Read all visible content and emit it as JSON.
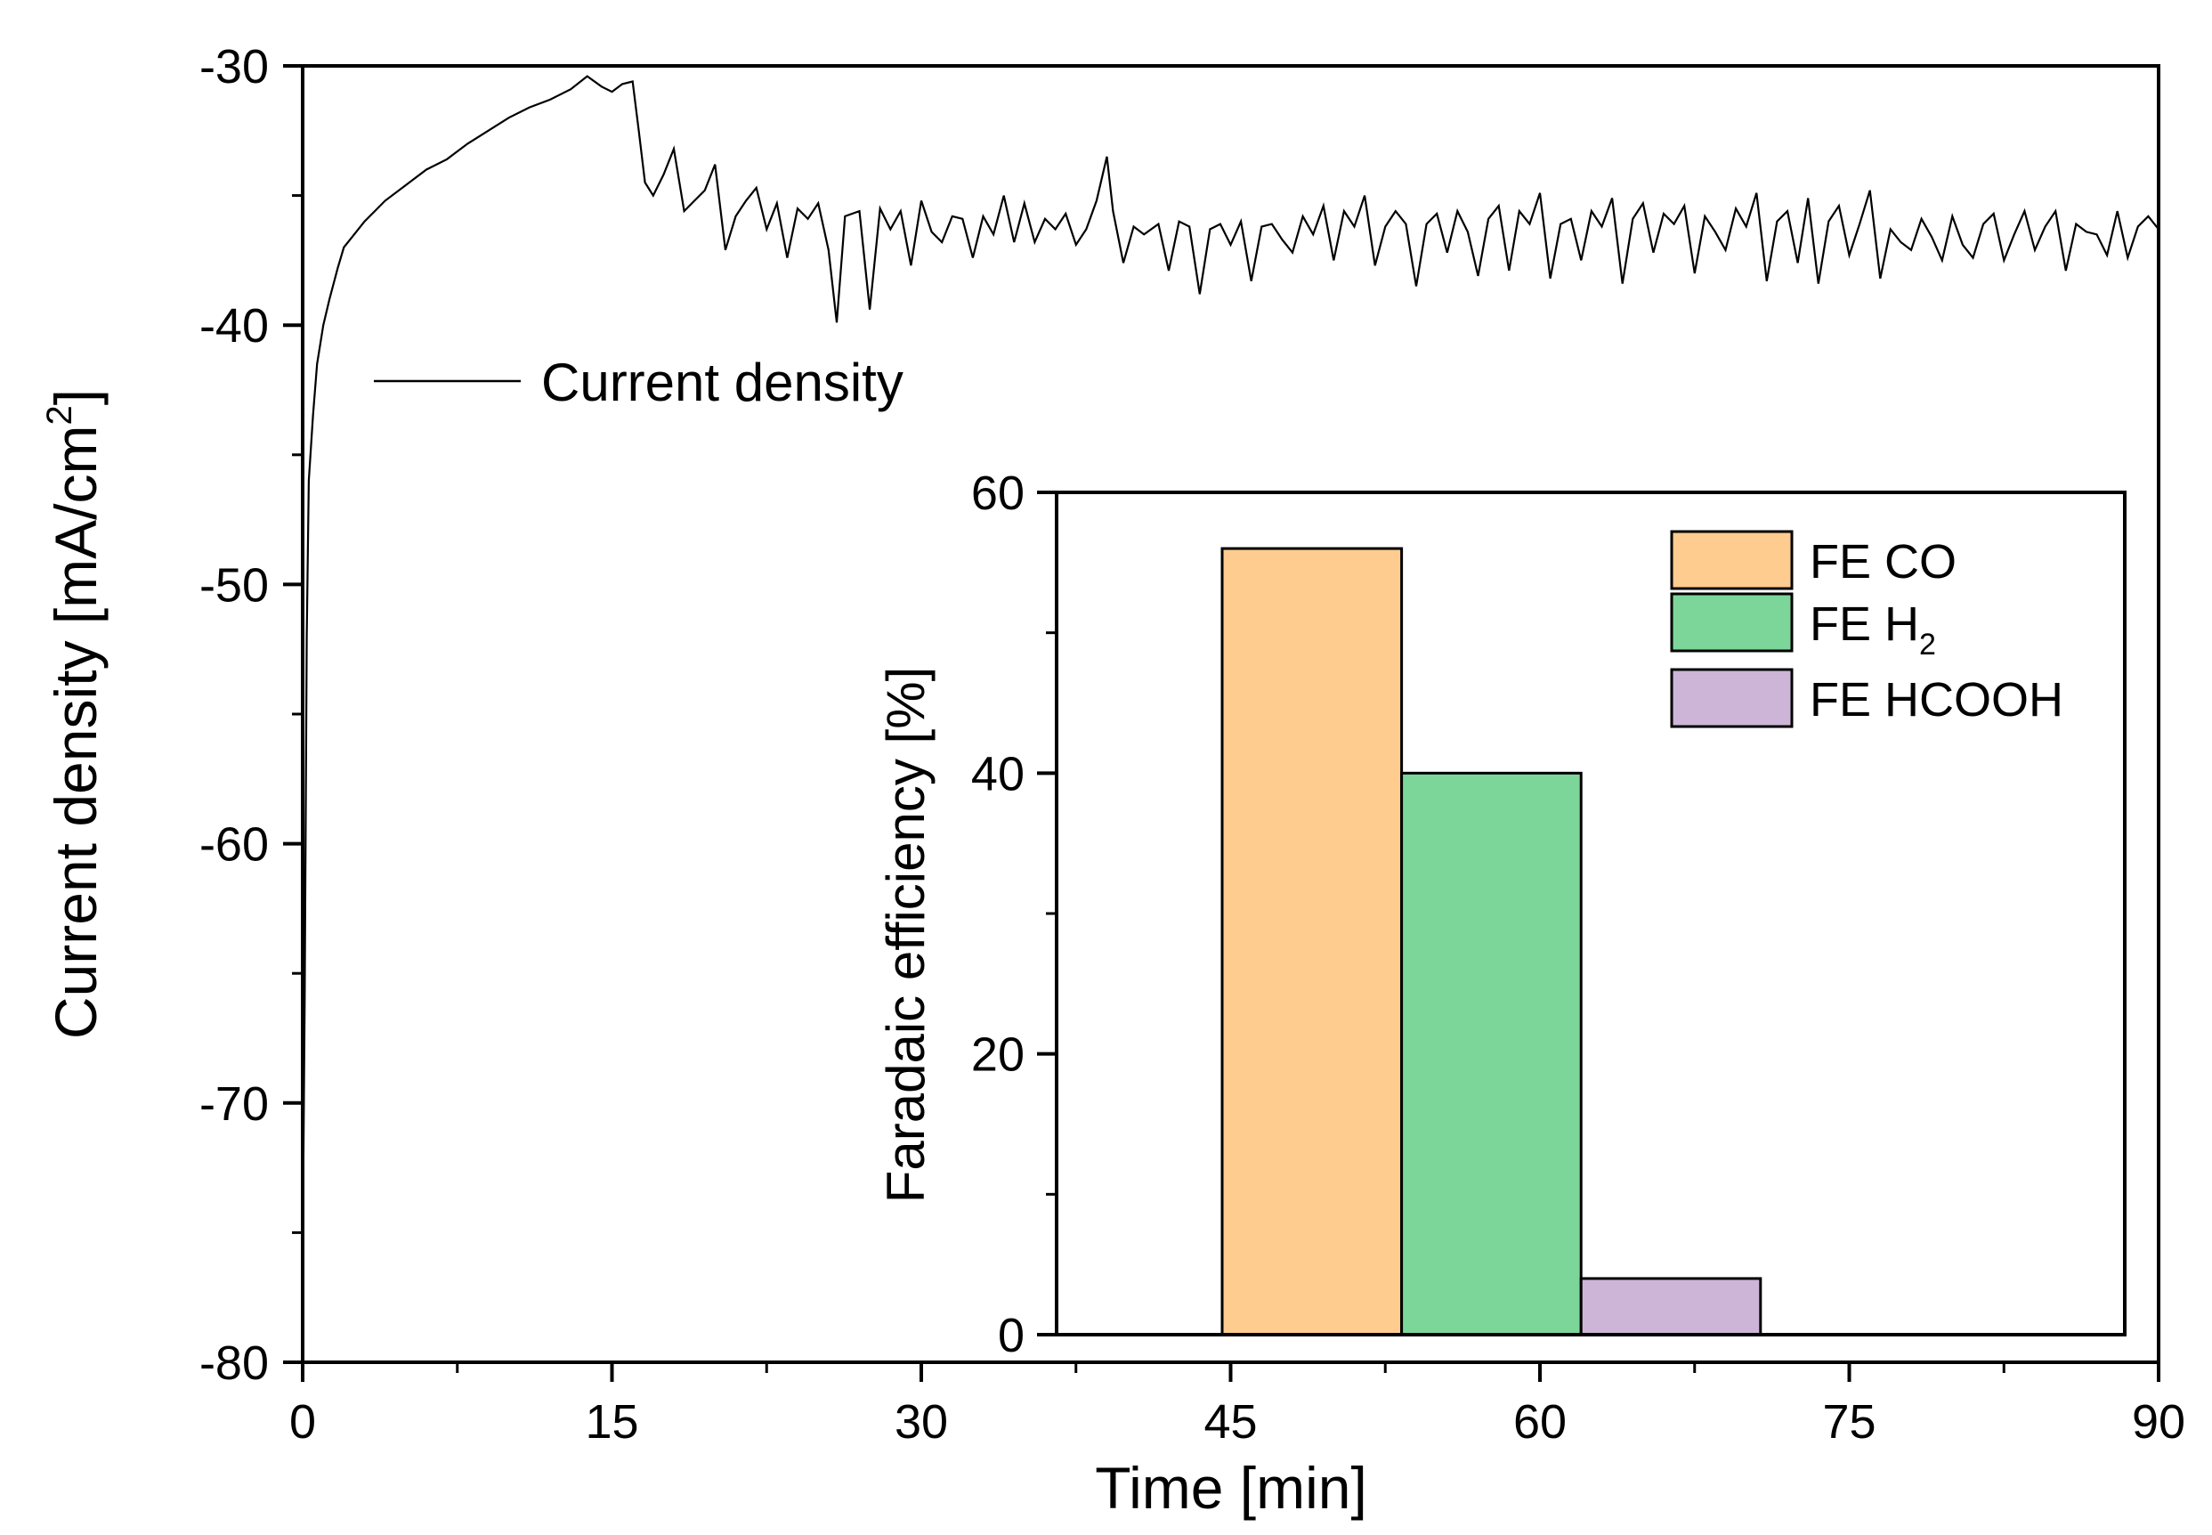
{
  "chart_data": [
    {
      "type": "line",
      "title": "",
      "xlabel": "Time [min]",
      "ylabel_main": "Current density [mA/cm",
      "ylabel_sup": "2",
      "ylabel_close": "]",
      "xlim": [
        0,
        90
      ],
      "ylim": [
        -80,
        -30
      ],
      "xticks": [
        0,
        15,
        30,
        45,
        60,
        75,
        90
      ],
      "xtick_labels": [
        "0",
        "15",
        "30",
        "45",
        "60",
        "75",
        "90"
      ],
      "yticks": [
        -30,
        -40,
        -50,
        -60,
        -70,
        -80
      ],
      "ytick_labels": [
        "-30",
        "-40",
        "-50",
        "-60",
        "-70",
        "-80"
      ],
      "grid": false,
      "legend": {
        "position": "upper-left",
        "label": "Current density"
      },
      "series": [
        {
          "name": "Current density",
          "color": "#000000",
          "x": [
            0,
            0.1,
            0.2,
            0.3,
            0.5,
            0.7,
            1,
            1.3,
            1.7,
            2,
            2.5,
            3,
            3.5,
            4,
            5,
            6,
            7,
            8,
            9,
            10,
            11,
            12,
            13,
            13.8,
            14.5,
            15,
            15.5,
            16,
            16.3,
            16.6,
            17,
            17.5,
            18,
            18.5,
            19,
            19.5,
            20,
            20.5,
            21,
            21.5,
            22,
            22.5,
            23,
            23.5,
            24,
            24.5,
            25,
            25.5,
            25.9,
            26.3,
            27,
            27.5,
            28,
            28.5,
            29,
            29.5,
            30,
            30.5,
            31,
            31.5,
            32,
            32.5,
            33,
            33.5,
            34,
            34.5,
            35,
            35.5,
            36,
            36.5,
            37,
            37.5,
            38,
            38.5,
            39,
            39.3,
            39.8,
            40.3,
            40.8,
            41.5,
            42,
            42.5,
            43,
            43.5,
            44,
            44.5,
            45,
            45.5,
            46,
            46.5,
            47,
            47.5,
            48,
            48.5,
            49,
            49.5,
            50,
            50.5,
            51,
            51.5,
            52,
            52.5,
            53,
            53.5,
            54,
            54.5,
            55,
            55.5,
            56,
            56.5,
            57,
            57.5,
            58,
            58.5,
            59,
            59.5,
            60,
            60.5,
            61,
            61.5,
            62,
            62.5,
            63,
            63.5,
            64,
            64.5,
            65,
            65.5,
            66,
            66.5,
            67,
            67.5,
            68,
            68.5,
            69,
            69.5,
            70,
            70.5,
            71,
            71.5,
            72,
            72.5,
            73,
            73.5,
            74,
            74.5,
            75,
            75.5,
            76,
            76.5,
            77,
            77.5,
            78,
            78.5,
            79,
            79.5,
            80,
            80.5,
            81,
            81.5,
            82,
            82.5,
            83,
            83.5,
            84,
            84.5,
            85,
            85.5,
            86,
            86.5,
            87,
            87.5,
            88,
            88.5,
            89,
            89.5,
            90
          ],
          "y": [
            -76,
            -66,
            -52,
            -46,
            -43.5,
            -41.5,
            -40,
            -39,
            -37.8,
            -37,
            -36.5,
            -36,
            -35.6,
            -35.2,
            -34.6,
            -34,
            -33.6,
            -33,
            -32.5,
            -32,
            -31.6,
            -31.3,
            -30.9,
            -30.4,
            -30.8,
            -31,
            -30.7,
            -30.6,
            -32.5,
            -34.5,
            -35,
            -34.2,
            -33.2,
            -35.6,
            -35.2,
            -34.8,
            -33.8,
            -37.1,
            -35.8,
            -35.2,
            -34.7,
            -36.3,
            -35.3,
            -37.4,
            -35.5,
            -35.9,
            -35.3,
            -37.1,
            -39.9,
            -35.8,
            -35.6,
            -39.4,
            -35.5,
            -36.3,
            -35.6,
            -37.7,
            -35.2,
            -36.4,
            -36.8,
            -35.8,
            -35.9,
            -37.4,
            -35.8,
            -36.5,
            -35,
            -36.8,
            -35.3,
            -36.8,
            -35.9,
            -36.3,
            -35.7,
            -36.9,
            -36.3,
            -35.2,
            -33.5,
            -35.6,
            -37.6,
            -36.2,
            -36.5,
            -36.1,
            -37.9,
            -36,
            -36.2,
            -38.8,
            -36.3,
            -36.1,
            -36.9,
            -36,
            -38.3,
            -36.2,
            -36.1,
            -36.7,
            -37.2,
            -35.8,
            -36.5,
            -35.4,
            -37.5,
            -35.6,
            -36.2,
            -35,
            -37.7,
            -36.2,
            -35.6,
            -36.1,
            -38.5,
            -36.1,
            -35.7,
            -37.2,
            -35.6,
            -36.4,
            -38.1,
            -35.9,
            -35.4,
            -37.9,
            -35.6,
            -36.1,
            -34.9,
            -38.2,
            -36.1,
            -35.9,
            -37.5,
            -35.6,
            -36.2,
            -35.1,
            -38.4,
            -35.9,
            -35.3,
            -37.2,
            -35.7,
            -36.1,
            -35.4,
            -38.0,
            -35.8,
            -36.4,
            -37.1,
            -35.5,
            -36.2,
            -34.9,
            -38.3,
            -36.0,
            -35.6,
            -37.6,
            -35.1,
            -38.4,
            -36.0,
            -35.4,
            -37.3,
            -36.1,
            -34.8,
            -38.2,
            -36.3,
            -36.8,
            -37.1,
            -35.9,
            -36.6,
            -37.5,
            -35.8,
            -36.9,
            -37.4,
            -36.1,
            -35.7,
            -37.5,
            -36.5,
            -35.6,
            -37.1,
            -36.2,
            -35.6,
            -37.9,
            -36.1,
            -36.4,
            -36.5,
            -37.3,
            -35.6,
            -37.4,
            -36.2,
            -35.8,
            -36.3
          ]
        }
      ]
    },
    {
      "type": "bar",
      "title": "",
      "ylabel": "Faradaic efficiency [%]",
      "ylim": [
        0,
        60
      ],
      "yticks": [
        0,
        20,
        40,
        60
      ],
      "ytick_labels": [
        "0",
        "20",
        "40",
        "60"
      ],
      "grid": false,
      "legend_position": "upper-right",
      "series": [
        {
          "name": "FE CO",
          "legend_label": "FE CO",
          "value": 56,
          "color": "#FFCC8F"
        },
        {
          "name": "FE H2",
          "legend_label": "FE H",
          "legend_sub": "2",
          "value": 40,
          "color": "#7DD699"
        },
        {
          "name": "FE HCOOH",
          "legend_label": "FE HCOOH",
          "value": 4,
          "color": "#CDB5D8"
        }
      ]
    }
  ]
}
